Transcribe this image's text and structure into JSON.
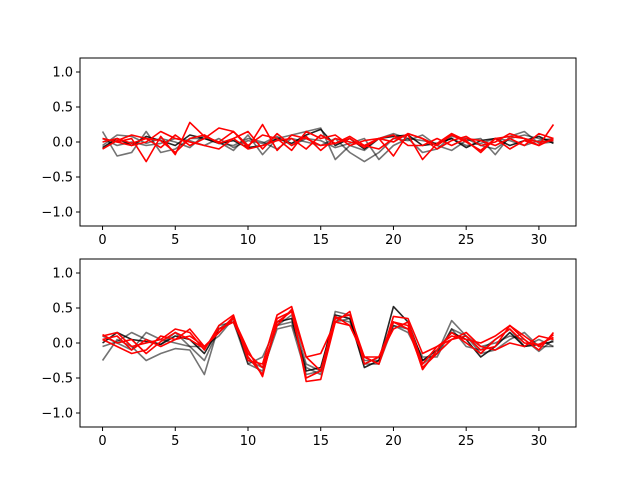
{
  "chart_data": [
    {
      "type": "line",
      "xlim": [
        -1.55,
        32.55
      ],
      "ylim": [
        -1.2,
        1.2
      ],
      "xticks": [
        0,
        5,
        10,
        15,
        20,
        25,
        30
      ],
      "xtick_labels": [
        "0",
        "5",
        "10",
        "15",
        "20",
        "25",
        "30"
      ],
      "yticks": [
        -1.0,
        -0.5,
        0.0,
        0.5,
        1.0
      ],
      "ytick_labels": [
        "−1.0",
        "−0.5",
        "0.0",
        "0.5",
        "1.0"
      ],
      "grid": false,
      "x": [
        0,
        1,
        2,
        3,
        4,
        5,
        6,
        7,
        8,
        9,
        10,
        11,
        12,
        13,
        14,
        15,
        16,
        17,
        18,
        19,
        20,
        21,
        22,
        23,
        24,
        25,
        26,
        27,
        28,
        29,
        30,
        31
      ],
      "series": [
        {
          "color": "#000000",
          "opacity": 0.85,
          "values": [
            -0.08,
            0.05,
            -0.05,
            0.08,
            0.02,
            -0.05,
            0.1,
            0.05,
            -0.02,
            0.02,
            -0.08,
            -0.05,
            0.05,
            -0.02,
            0.1,
            0.18,
            -0.05,
            0.05,
            -0.1,
            0.05,
            0.08,
            0.1,
            -0.05,
            -0.02,
            0.05,
            -0.08,
            0.02,
            0.05,
            -0.05,
            0.02,
            0.08,
            -0.02
          ]
        },
        {
          "color": "#000000",
          "opacity": 0.55,
          "values": [
            0.15,
            -0.2,
            -0.15,
            0.15,
            -0.15,
            -0.1,
            0.05,
            0.05,
            0.0,
            -0.12,
            0.1,
            -0.18,
            0.05,
            0.1,
            0.15,
            0.2,
            -0.25,
            -0.05,
            -0.12,
            0.05,
            0.12,
            0.05,
            -0.15,
            -0.1,
            0.08,
            0.05,
            -0.05,
            -0.1,
            0.05,
            0.1,
            0.05,
            0.02
          ]
        },
        {
          "color": "#000000",
          "opacity": 0.55,
          "values": [
            -0.05,
            0.1,
            0.08,
            -0.02,
            0.05,
            0.0,
            -0.08,
            0.1,
            -0.02,
            -0.05,
            0.05,
            0.0,
            -0.1,
            0.05,
            0.0,
            -0.05,
            0.05,
            -0.15,
            -0.28,
            -0.15,
            0.05,
            0.02,
            0.1,
            -0.05,
            -0.12,
            0.02,
            0.05,
            -0.18,
            0.08,
            0.15,
            -0.02,
            0.0
          ]
        },
        {
          "color": "#000000",
          "opacity": 0.55,
          "values": [
            0.05,
            -0.05,
            0.0,
            -0.05,
            -0.02,
            0.05,
            0.02,
            -0.05,
            0.05,
            -0.08,
            0.02,
            -0.02,
            0.08,
            -0.05,
            0.05,
            0.02,
            -0.08,
            -0.02,
            0.05,
            -0.25,
            -0.05,
            0.05,
            0.02,
            -0.02,
            0.05,
            -0.05,
            -0.02,
            0.05,
            0.02,
            -0.05,
            0.02,
            0.05
          ]
        },
        {
          "color": "#ff0000",
          "opacity": 1.0,
          "values": [
            0.05,
            0.0,
            0.05,
            -0.28,
            0.08,
            -0.18,
            0.28,
            0.08,
            0.0,
            0.15,
            -0.08,
            0.25,
            -0.12,
            0.1,
            0.05,
            -0.05,
            -0.02,
            0.08,
            -0.05,
            -0.1,
            0.05,
            0.1,
            -0.25,
            -0.02,
            0.12,
            0.02,
            -0.15,
            0.05,
            -0.1,
            0.02,
            -0.05,
            0.25
          ]
        },
        {
          "color": "#ff0000",
          "opacity": 1.0,
          "values": [
            0.0,
            0.05,
            -0.02,
            0.05,
            -0.08,
            0.1,
            -0.05,
            0.05,
            0.2,
            0.15,
            -0.05,
            0.1,
            0.05,
            -0.12,
            0.15,
            0.05,
            0.1,
            -0.05,
            0.02,
            0.05,
            -0.2,
            0.12,
            0.05,
            -0.1,
            0.02,
            0.08,
            -0.05,
            0.0,
            0.12,
            0.05,
            -0.05,
            0.05
          ]
        },
        {
          "color": "#ff0000",
          "opacity": 1.0,
          "values": [
            -0.1,
            0.02,
            0.1,
            0.05,
            0.02,
            -0.15,
            0.05,
            0.1,
            -0.02,
            0.05,
            0.15,
            -0.1,
            0.12,
            -0.05,
            0.08,
            -0.12,
            0.05,
            0.0,
            -0.05,
            0.05,
            0.0,
            0.12,
            0.05,
            -0.05,
            0.1,
            0.0,
            -0.12,
            0.05,
            0.08,
            0.05,
            0.0,
            0.02
          ]
        },
        {
          "color": "#ff0000",
          "opacity": 1.0,
          "values": [
            0.05,
            0.0,
            -0.05,
            0.0,
            0.15,
            0.05,
            0.0,
            -0.05,
            -0.1,
            0.05,
            -0.1,
            -0.05,
            0.02,
            0.05,
            -0.1,
            0.1,
            -0.02,
            0.05,
            -0.08,
            0.05,
            0.1,
            -0.05,
            -0.05,
            0.05,
            -0.05,
            0.05,
            0.02,
            -0.05,
            0.05,
            -0.05,
            0.12,
            0.05
          ]
        }
      ]
    },
    {
      "type": "line",
      "xlim": [
        -1.55,
        32.55
      ],
      "ylim": [
        -1.2,
        1.2
      ],
      "xticks": [
        0,
        5,
        10,
        15,
        20,
        25,
        30
      ],
      "xtick_labels": [
        "0",
        "5",
        "10",
        "15",
        "20",
        "25",
        "30"
      ],
      "yticks": [
        -1.0,
        -0.5,
        0.0,
        0.5,
        1.0
      ],
      "ytick_labels": [
        "−1.0",
        "−0.5",
        "0.0",
        "0.5",
        "1.0"
      ],
      "grid": false,
      "x": [
        0,
        1,
        2,
        3,
        4,
        5,
        6,
        7,
        8,
        9,
        10,
        11,
        12,
        13,
        14,
        15,
        16,
        17,
        18,
        19,
        20,
        21,
        22,
        23,
        24,
        25,
        26,
        27,
        28,
        29,
        30,
        31
      ],
      "series": [
        {
          "color": "#000000",
          "opacity": 0.85,
          "values": [
            0.0,
            0.15,
            0.05,
            0.02,
            -0.02,
            0.1,
            0.05,
            -0.15,
            0.2,
            0.3,
            -0.2,
            -0.45,
            0.3,
            0.35,
            -0.4,
            -0.35,
            0.4,
            0.35,
            -0.35,
            -0.25,
            0.52,
            0.3,
            -0.25,
            -0.1,
            0.15,
            0.05,
            -0.2,
            -0.05,
            0.15,
            -0.05,
            -0.02,
            0.02
          ]
        },
        {
          "color": "#000000",
          "opacity": 0.55,
          "values": [
            -0.25,
            0.05,
            -0.05,
            -0.25,
            -0.15,
            -0.08,
            -0.1,
            -0.45,
            0.25,
            0.3,
            -0.3,
            -0.2,
            0.25,
            0.4,
            -0.3,
            -0.4,
            0.45,
            0.4,
            -0.3,
            -0.2,
            0.25,
            0.2,
            -0.3,
            -0.15,
            0.32,
            0.1,
            -0.15,
            -0.1,
            0.05,
            0.15,
            -0.05,
            -0.05
          ]
        },
        {
          "color": "#000000",
          "opacity": 0.55,
          "values": [
            -0.05,
            0.02,
            0.15,
            0.05,
            -0.02,
            0.15,
            -0.05,
            -0.05,
            0.1,
            0.35,
            -0.25,
            -0.35,
            0.25,
            0.3,
            -0.35,
            -0.45,
            0.35,
            0.3,
            -0.25,
            -0.25,
            0.3,
            0.2,
            -0.2,
            -0.2,
            0.2,
            0.1,
            -0.05,
            0.0,
            0.1,
            0.05,
            -0.12,
            0.05
          ]
        },
        {
          "color": "#000000",
          "opacity": 0.55,
          "values": [
            0.1,
            0.0,
            -0.1,
            0.15,
            0.05,
            0.0,
            -0.05,
            -0.25,
            0.2,
            0.35,
            -0.3,
            -0.4,
            0.2,
            0.25,
            -0.45,
            -0.4,
            0.3,
            0.35,
            -0.3,
            -0.3,
            0.25,
            0.15,
            -0.25,
            -0.15,
            0.2,
            -0.05,
            -0.1,
            0.05,
            0.2,
            -0.05,
            0.05,
            -0.05
          ]
        },
        {
          "color": "#ff0000",
          "opacity": 1.0,
          "values": [
            0.1,
            0.15,
            -0.05,
            0.0,
            0.05,
            0.2,
            0.15,
            -0.1,
            0.25,
            0.4,
            -0.25,
            -0.3,
            0.4,
            0.52,
            -0.2,
            -0.15,
            0.3,
            0.25,
            -0.2,
            -0.3,
            0.38,
            0.35,
            -0.15,
            -0.05,
            0.1,
            0.05,
            0.0,
            0.1,
            0.25,
            0.05,
            -0.1,
            0.15
          ]
        },
        {
          "color": "#ff0000",
          "opacity": 1.0,
          "values": [
            0.05,
            -0.05,
            -0.15,
            -0.1,
            0.1,
            0.05,
            0.1,
            -0.05,
            0.15,
            0.38,
            -0.2,
            -0.45,
            0.3,
            0.45,
            -0.5,
            -0.4,
            0.38,
            0.25,
            -0.2,
            -0.3,
            0.3,
            0.2,
            -0.35,
            -0.15,
            0.05,
            0.15,
            -0.05,
            -0.1,
            0.0,
            -0.05,
            0.1,
            0.05
          ]
        },
        {
          "color": "#ff0000",
          "opacity": 1.0,
          "values": [
            0.12,
            0.0,
            0.05,
            -0.15,
            0.02,
            0.15,
            0.05,
            -0.08,
            0.2,
            0.3,
            -0.15,
            -0.35,
            0.25,
            0.48,
            -0.55,
            -0.52,
            0.3,
            0.45,
            -0.3,
            -0.2,
            0.3,
            0.25,
            -0.38,
            -0.1,
            0.15,
            0.0,
            -0.15,
            0.05,
            0.2,
            0.0,
            -0.02,
            0.08
          ]
        },
        {
          "color": "#ff0000",
          "opacity": 1.0,
          "values": [
            0.05,
            0.1,
            -0.1,
            0.05,
            -0.05,
            0.05,
            0.2,
            -0.05,
            0.15,
            0.35,
            -0.1,
            -0.48,
            0.35,
            0.45,
            -0.2,
            -0.4,
            0.35,
            0.4,
            -0.2,
            -0.2,
            0.2,
            0.3,
            -0.3,
            -0.05,
            0.05,
            0.1,
            -0.1,
            -0.05,
            0.25,
            0.1,
            -0.05,
            0.12
          ]
        }
      ]
    }
  ]
}
